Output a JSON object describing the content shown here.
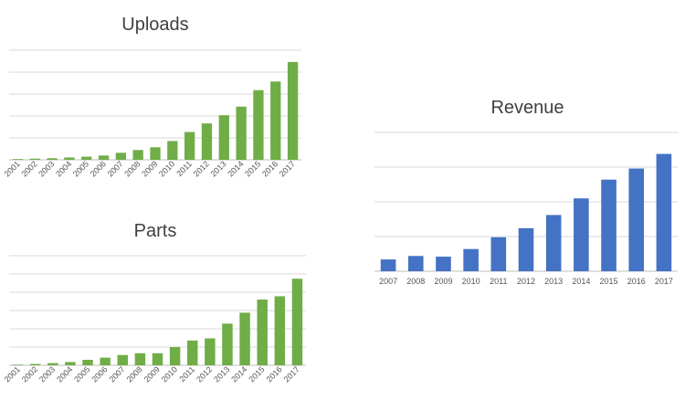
{
  "chart_data": [
    {
      "type": "bar",
      "title": "Uploads",
      "categories": [
        "2001",
        "2002",
        "2003",
        "2004",
        "2005",
        "2006",
        "2007",
        "2008",
        "2009",
        "2010",
        "2011",
        "2012",
        "2013",
        "2014",
        "2015",
        "2016",
        "2017"
      ],
      "values": [
        0.2,
        0.3,
        0.4,
        0.6,
        0.8,
        1.1,
        1.8,
        2.5,
        3.2,
        4.8,
        7.1,
        9.3,
        11.4,
        13.6,
        17.8,
        20.0,
        25.0
      ],
      "ylim": [
        0,
        28
      ],
      "grid": true,
      "color": "#70ad47"
    },
    {
      "type": "bar",
      "title": "Parts",
      "categories": [
        "2001",
        "2002",
        "2003",
        "2004",
        "2005",
        "2006",
        "2007",
        "2008",
        "2009",
        "2010",
        "2011",
        "2012",
        "2013",
        "2014",
        "2015",
        "2016",
        "2017"
      ],
      "values": [
        0.3,
        0.6,
        1.0,
        1.5,
        2.5,
        3.5,
        4.7,
        5.5,
        5.5,
        8.3,
        11.3,
        12.3,
        19.0,
        24.0,
        30.0,
        31.5,
        39.5
      ],
      "ylim": [
        0,
        50
      ],
      "grid": true,
      "color": "#70ad47"
    },
    {
      "type": "bar",
      "title": "Revenue",
      "categories": [
        "2007",
        "2008",
        "2009",
        "2010",
        "2011",
        "2012",
        "2013",
        "2014",
        "2015",
        "2016",
        "2017"
      ],
      "values": [
        1.7,
        2.2,
        2.1,
        3.2,
        4.9,
        6.2,
        8.1,
        10.5,
        13.2,
        14.8,
        16.9
      ],
      "ylim": [
        0,
        20
      ],
      "grid": true,
      "color": "#4472c4"
    }
  ]
}
